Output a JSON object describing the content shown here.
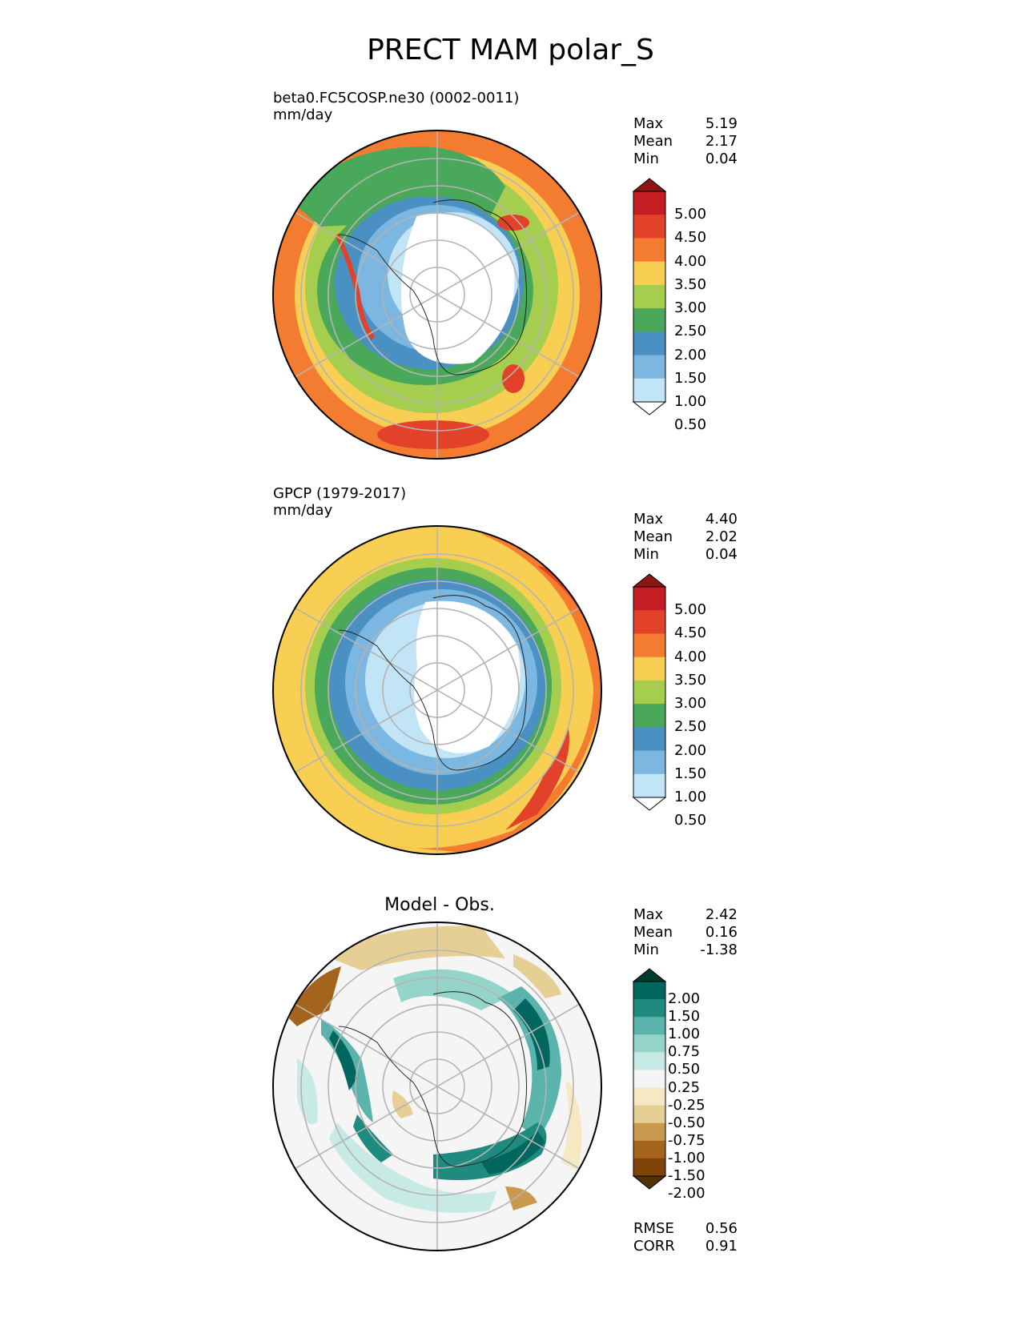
{
  "figure": {
    "title": "PRECT MAM polar_S"
  },
  "panels": [
    {
      "id": "test",
      "title": "beta0.FC5COSP.ne30 (0002-0011)",
      "units": "mm/day",
      "stats": [
        {
          "label": "Max",
          "value": "5.19"
        },
        {
          "label": "Mean",
          "value": "2.17"
        },
        {
          "label": "Min",
          "value": "0.04"
        }
      ],
      "colorbar": {
        "ticks": [
          "5.00",
          "4.50",
          "4.00",
          "3.50",
          "3.00",
          "2.50",
          "2.00",
          "1.50",
          "1.00",
          "0.50"
        ],
        "colors": [
          "#8c1515",
          "#c41e24",
          "#e3422a",
          "#f47c30",
          "#f8cf52",
          "#a6ce4e",
          "#4aa85a",
          "#4a90c2",
          "#7bb7e0",
          "#c2e4f7",
          "#ffffff"
        ]
      }
    },
    {
      "id": "reference",
      "title": "GPCP (1979-2017)",
      "units": "mm/day",
      "stats": [
        {
          "label": "Max",
          "value": "4.40"
        },
        {
          "label": "Mean",
          "value": "2.02"
        },
        {
          "label": "Min",
          "value": "0.04"
        }
      ],
      "colorbar": {
        "ticks": [
          "5.00",
          "4.50",
          "4.00",
          "3.50",
          "3.00",
          "2.50",
          "2.00",
          "1.50",
          "1.00",
          "0.50"
        ],
        "colors": [
          "#8c1515",
          "#c41e24",
          "#e3422a",
          "#f47c30",
          "#f8cf52",
          "#a6ce4e",
          "#4aa85a",
          "#4a90c2",
          "#7bb7e0",
          "#c2e4f7",
          "#ffffff"
        ]
      }
    },
    {
      "id": "diff",
      "title": "Model - Obs.",
      "stats": [
        {
          "label": "Max",
          "value": "2.42"
        },
        {
          "label": "Mean",
          "value": "0.16"
        },
        {
          "label": "Min",
          "value": "-1.38"
        }
      ],
      "colorbar": {
        "ticks": [
          "2.00",
          "1.50",
          "1.00",
          "0.75",
          "0.50",
          "0.25",
          "-0.25",
          "-0.50",
          "-0.75",
          "-1.00",
          "-1.50",
          "-2.00"
        ],
        "colors": [
          "#023a2e",
          "#01665e",
          "#1f8a7e",
          "#5ab4ac",
          "#95d4c8",
          "#c7eae5",
          "#f5f5f5",
          "#f6e8c3",
          "#e6cf94",
          "#c99a4e",
          "#a4641b",
          "#7f4307",
          "#543005"
        ]
      },
      "footer_stats": [
        {
          "label": "RMSE",
          "value": "0.56"
        },
        {
          "label": "CORR",
          "value": "0.91"
        }
      ]
    }
  ]
}
